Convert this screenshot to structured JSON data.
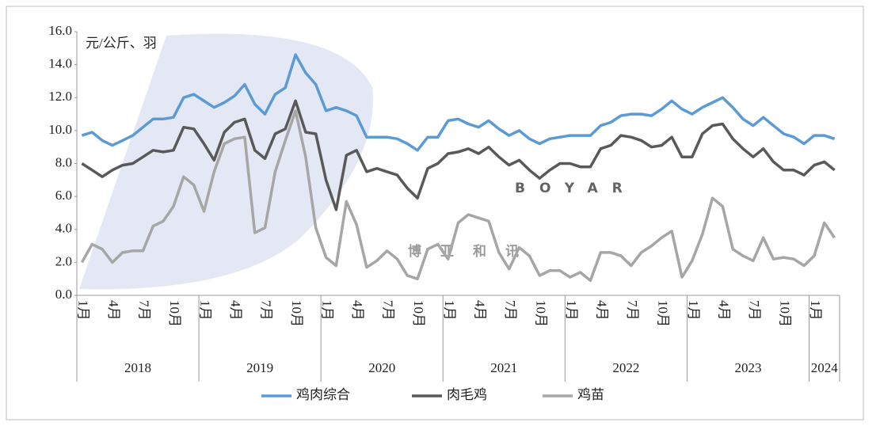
{
  "chart_data": {
    "type": "line",
    "annotation": "元/公斤、羽",
    "watermark": [
      "BOYAR",
      "博亚和讯"
    ],
    "categories": [
      "1月",
      null,
      null,
      "4月",
      null,
      null,
      "7月",
      null,
      null,
      "10月",
      null,
      null,
      "1月",
      null,
      null,
      "4月",
      null,
      null,
      "7月",
      null,
      null,
      "10月",
      null,
      null,
      "1月",
      null,
      null,
      "4月",
      null,
      null,
      "7月",
      null,
      null,
      "10月",
      null,
      null,
      "1月",
      null,
      null,
      "4月",
      null,
      null,
      "7月",
      null,
      null,
      "10月",
      null,
      null,
      "1月",
      null,
      null,
      "4月",
      null,
      null,
      "7月",
      null,
      null,
      "10月",
      null,
      null,
      "1月",
      null,
      null,
      "4月",
      null,
      null,
      "7月",
      null,
      null,
      "10月",
      null,
      null,
      "1月",
      null,
      null
    ],
    "years": [
      "2018",
      "2019",
      "2020",
      "2021",
      "2022",
      "2023",
      "2024"
    ],
    "series": [
      {
        "name": "鸡肉综合",
        "color": "#5b9bd5",
        "values": [
          9.7,
          9.9,
          9.4,
          9.1,
          9.4,
          9.7,
          10.2,
          10.7,
          10.7,
          10.8,
          12.0,
          12.2,
          11.8,
          11.4,
          11.7,
          12.1,
          12.8,
          11.6,
          11.0,
          12.2,
          12.6,
          14.6,
          13.5,
          12.8,
          11.2,
          11.4,
          11.2,
          10.9,
          9.6,
          9.6,
          9.6,
          9.5,
          9.2,
          8.8,
          9.6,
          9.6,
          10.6,
          10.7,
          10.4,
          10.2,
          10.6,
          10.1,
          9.7,
          10.0,
          9.5,
          9.2,
          9.5,
          9.6,
          9.7,
          9.7,
          9.7,
          10.3,
          10.5,
          10.9,
          11.0,
          11.0,
          10.9,
          11.3,
          11.8,
          11.3,
          11.0,
          11.4,
          11.7,
          12.0,
          11.4,
          10.7,
          10.3,
          10.8,
          10.3,
          9.8,
          9.6,
          9.2,
          9.7,
          9.7,
          9.5
        ]
      },
      {
        "name": "肉毛鸡",
        "color": "#595959",
        "values": [
          8.0,
          7.6,
          7.2,
          7.6,
          7.9,
          8.0,
          8.4,
          8.8,
          8.7,
          8.8,
          10.2,
          10.1,
          9.2,
          8.2,
          9.9,
          10.5,
          10.7,
          8.8,
          8.3,
          9.8,
          10.1,
          11.8,
          9.9,
          9.8,
          7.0,
          5.2,
          8.5,
          8.8,
          7.5,
          7.7,
          7.5,
          7.3,
          6.5,
          5.9,
          7.7,
          8.0,
          8.6,
          8.7,
          8.9,
          8.6,
          9.0,
          8.4,
          7.9,
          8.2,
          7.6,
          7.1,
          7.6,
          8.0,
          8.0,
          7.8,
          7.8,
          8.9,
          9.1,
          9.7,
          9.6,
          9.4,
          9.0,
          9.1,
          9.6,
          8.4,
          8.4,
          9.8,
          10.3,
          10.4,
          9.5,
          8.9,
          8.4,
          8.9,
          8.1,
          7.6,
          7.6,
          7.3,
          7.9,
          8.1,
          7.6
        ]
      },
      {
        "name": "鸡苗",
        "color": "#a6a6a6",
        "values": [
          2.0,
          3.1,
          2.8,
          2.0,
          2.6,
          2.7,
          2.7,
          4.2,
          4.5,
          5.4,
          7.2,
          6.7,
          5.1,
          7.5,
          9.2,
          9.5,
          9.6,
          3.8,
          4.1,
          7.5,
          9.4,
          11.2,
          8.4,
          4.1,
          2.3,
          1.8,
          5.7,
          4.3,
          1.7,
          2.1,
          2.7,
          2.2,
          1.2,
          1.0,
          2.8,
          3.1,
          2.2,
          4.4,
          4.9,
          4.7,
          4.5,
          2.6,
          1.6,
          2.9,
          2.4,
          1.2,
          1.5,
          1.5,
          1.1,
          1.4,
          0.9,
          2.6,
          2.6,
          2.4,
          1.8,
          2.6,
          3.0,
          3.5,
          3.9,
          1.1,
          2.1,
          3.7,
          5.9,
          5.4,
          2.8,
          2.4,
          2.1,
          3.5,
          2.2,
          2.3,
          2.2,
          1.8,
          2.4,
          4.4,
          3.5
        ]
      }
    ],
    "ylim": [
      0,
      16
    ],
    "yticks": [
      {
        "value": 0,
        "label": "0.0"
      },
      {
        "value": 2,
        "label": "2.0"
      },
      {
        "value": 4,
        "label": "4.0"
      },
      {
        "value": 6,
        "label": "6.0"
      },
      {
        "value": 8,
        "label": "8.0"
      },
      {
        "value": 10,
        "label": "10.0"
      },
      {
        "value": 12,
        "label": "12.0"
      },
      {
        "value": 14,
        "label": "14.0"
      },
      {
        "value": 16,
        "label": "16.0"
      }
    ],
    "legend": "bottom"
  }
}
